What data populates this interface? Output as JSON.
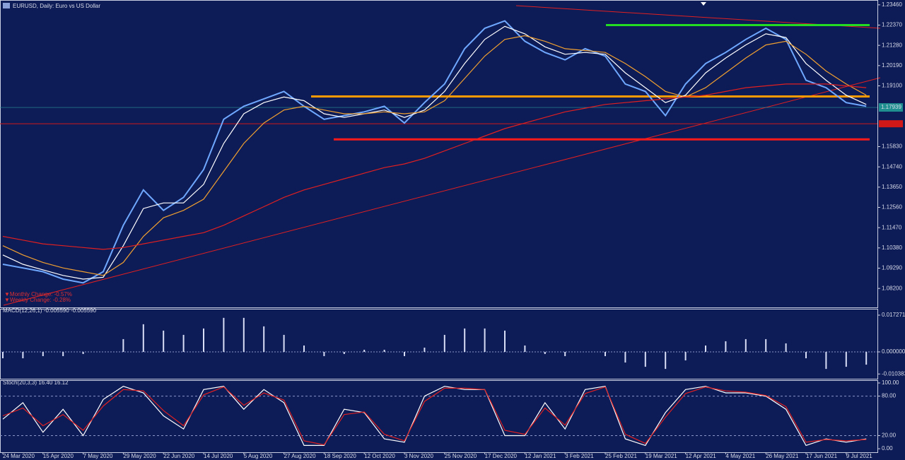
{
  "chart_data": [
    {
      "type": "line",
      "title": "EURUSD, Daily: Euro vs US Dollar",
      "categories": [
        "24 Mar 2020",
        null,
        "15 Apr 2020",
        null,
        "7 May 2020",
        null,
        "29 May 2020",
        null,
        "22 Jun 2020",
        null,
        "14 Jul 2020",
        null,
        "5 Aug 2020",
        null,
        "27 Aug 2020",
        null,
        "18 Sep 2020",
        null,
        "12 Oct 2020",
        null,
        "3 Nov 2020",
        null,
        "25 Nov 2020",
        null,
        "17 Dec 2020",
        null,
        "12 Jan 2021",
        null,
        "3 Feb 2021",
        null,
        "25 Feb 2021",
        null,
        "19 Mar 2021",
        null,
        "12 Apr 2021",
        null,
        "4 May 2021",
        null,
        "26 May 2021",
        null,
        "17 Jun 2021",
        null,
        "9 Jul 2021",
        null
      ],
      "series": [
        {
          "color": "#6fa8ff",
          "values": [
            1.095,
            1.093,
            1.091,
            1.087,
            1.085,
            1.091,
            1.116,
            1.135,
            1.124,
            1.131,
            1.146,
            1.173,
            1.18,
            1.184,
            1.188,
            1.18,
            1.173,
            1.175,
            1.177,
            1.18,
            1.171,
            1.182,
            1.192,
            1.211,
            1.222,
            1.226,
            1.215,
            1.209,
            1.205,
            1.211,
            1.207,
            1.192,
            1.188,
            1.175,
            1.192,
            1.203,
            1.209,
            1.216,
            1.222,
            1.216,
            1.194,
            1.19,
            1.182,
            1.18
          ]
        },
        {
          "color": "#ffffff",
          "values": [
            1.1,
            1.095,
            1.092,
            1.089,
            1.087,
            1.088,
            1.105,
            1.125,
            1.128,
            1.128,
            1.138,
            1.16,
            1.176,
            1.182,
            1.185,
            1.183,
            1.176,
            1.174,
            1.176,
            1.178,
            1.174,
            1.178,
            1.188,
            1.203,
            1.216,
            1.223,
            1.219,
            1.212,
            1.208,
            1.209,
            1.208,
            1.198,
            1.19,
            1.182,
            1.186,
            1.198,
            1.206,
            1.213,
            1.219,
            1.217,
            1.203,
            1.194,
            1.186,
            1.181
          ]
        },
        {
          "color": "#f0a030",
          "values": [
            1.105,
            1.1,
            1.096,
            1.093,
            1.091,
            1.089,
            1.096,
            1.11,
            1.12,
            1.124,
            1.13,
            1.145,
            1.16,
            1.171,
            1.178,
            1.18,
            1.178,
            1.176,
            1.176,
            1.177,
            1.176,
            1.177,
            1.183,
            1.195,
            1.207,
            1.216,
            1.218,
            1.215,
            1.211,
            1.21,
            1.209,
            1.203,
            1.196,
            1.188,
            1.185,
            1.19,
            1.198,
            1.206,
            1.213,
            1.215,
            1.208,
            1.199,
            1.192,
            1.186
          ]
        },
        {
          "color": "#e02020",
          "values": [
            1.11,
            1.108,
            1.106,
            1.105,
            1.104,
            1.103,
            1.104,
            1.106,
            1.108,
            1.11,
            1.112,
            1.116,
            1.121,
            1.126,
            1.131,
            1.135,
            1.138,
            1.141,
            1.144,
            1.147,
            1.149,
            1.152,
            1.156,
            1.16,
            1.164,
            1.168,
            1.171,
            1.174,
            1.177,
            1.179,
            1.181,
            1.182,
            1.183,
            1.184,
            1.185,
            1.186,
            1.188,
            1.19,
            1.191,
            1.192,
            1.192,
            1.192,
            1.191,
            1.19
          ]
        }
      ],
      "ylim": [
        1.0718,
        1.2372
      ],
      "yticks": [
        {
          "value": 1.2346,
          "label": "1.23460"
        },
        {
          "value": 1.2237,
          "label": "1.22370"
        },
        {
          "value": 1.2128,
          "label": "1.21280"
        },
        {
          "value": 1.2019,
          "label": "1.20190"
        },
        {
          "value": 1.191,
          "label": "1.19100"
        },
        {
          "value": 1.1583,
          "label": "1.15830"
        },
        {
          "value": 1.1474,
          "label": "1.14740"
        },
        {
          "value": 1.1365,
          "label": "1.13650"
        },
        {
          "value": 1.1256,
          "label": "1.12560"
        },
        {
          "value": 1.1147,
          "label": "1.11470"
        },
        {
          "value": 1.1038,
          "label": "1.10380"
        },
        {
          "value": 1.0929,
          "label": "1.09290"
        },
        {
          "value": 1.082,
          "label": "1.08200"
        }
      ],
      "levels": [
        {
          "value": 1.2237,
          "color": "#22dd22"
        },
        {
          "value": 1.1853,
          "color": "#ff9a00"
        },
        {
          "value": 1.1622,
          "color": "#ff1a1a"
        },
        {
          "value": 1.1706,
          "color": "#d01818"
        }
      ],
      "price_label": {
        "value": 1.17939,
        "label": "1.17939"
      },
      "annotations": [
        "▼Monthly Change: -0.57%",
        "▼Weekly Change: -0.28%"
      ]
    },
    {
      "type": "bar",
      "title": "MACD(12,26,1) -0.005590 -0.005590",
      "color": "#d8def5",
      "values": [
        -0.003,
        -0.003,
        -0.002,
        -0.002,
        -0.001,
        0.0,
        0.006,
        0.013,
        0.01,
        0.008,
        0.011,
        0.016,
        0.016,
        0.012,
        0.008,
        0.003,
        -0.002,
        -0.001,
        0.001,
        0.001,
        -0.002,
        0.002,
        0.008,
        0.011,
        0.011,
        0.01,
        0.003,
        -0.001,
        -0.002,
        0.0,
        -0.002,
        -0.005,
        -0.007,
        -0.008,
        -0.004,
        0.003,
        0.005,
        0.006,
        0.006,
        0.004,
        -0.003,
        -0.008,
        -0.007,
        -0.006
      ],
      "ylim": [
        -0.01262,
        0.02026
      ],
      "yticks": [
        {
          "value": 0.017271,
          "label": "0.017271"
        },
        {
          "value": 0,
          "label": "0.000000"
        },
        {
          "value": -0.010383,
          "label": "-0.010383"
        }
      ]
    },
    {
      "type": "line",
      "title": "Stoch(20,3,3) 16.40 16.12",
      "series": [
        {
          "color": "#ffffff",
          "values": [
            45,
            70,
            25,
            60,
            20,
            75,
            95,
            85,
            50,
            30,
            90,
            95,
            60,
            90,
            70,
            5,
            5,
            60,
            55,
            15,
            10,
            80,
            95,
            90,
            90,
            20,
            20,
            70,
            30,
            90,
            95,
            15,
            5,
            55,
            90,
            95,
            85,
            85,
            80,
            60,
            5,
            15,
            10,
            15
          ]
        },
        {
          "color": "#e02020",
          "values": [
            50,
            62,
            35,
            52,
            28,
            65,
            90,
            88,
            58,
            35,
            82,
            94,
            66,
            85,
            74,
            12,
            6,
            52,
            56,
            22,
            12,
            72,
            92,
            92,
            90,
            28,
            22,
            62,
            36,
            84,
            94,
            22,
            8,
            48,
            84,
            94,
            88,
            86,
            81,
            64,
            10,
            14,
            12,
            14
          ]
        }
      ],
      "ylim": [
        -5.3,
        104.3
      ],
      "yticks": [
        {
          "value": 100,
          "label": "100.00"
        },
        {
          "value": 80,
          "label": "80.00"
        },
        {
          "value": 20,
          "label": "20.00"
        },
        {
          "value": 0,
          "label": "0.00"
        }
      ]
    }
  ]
}
